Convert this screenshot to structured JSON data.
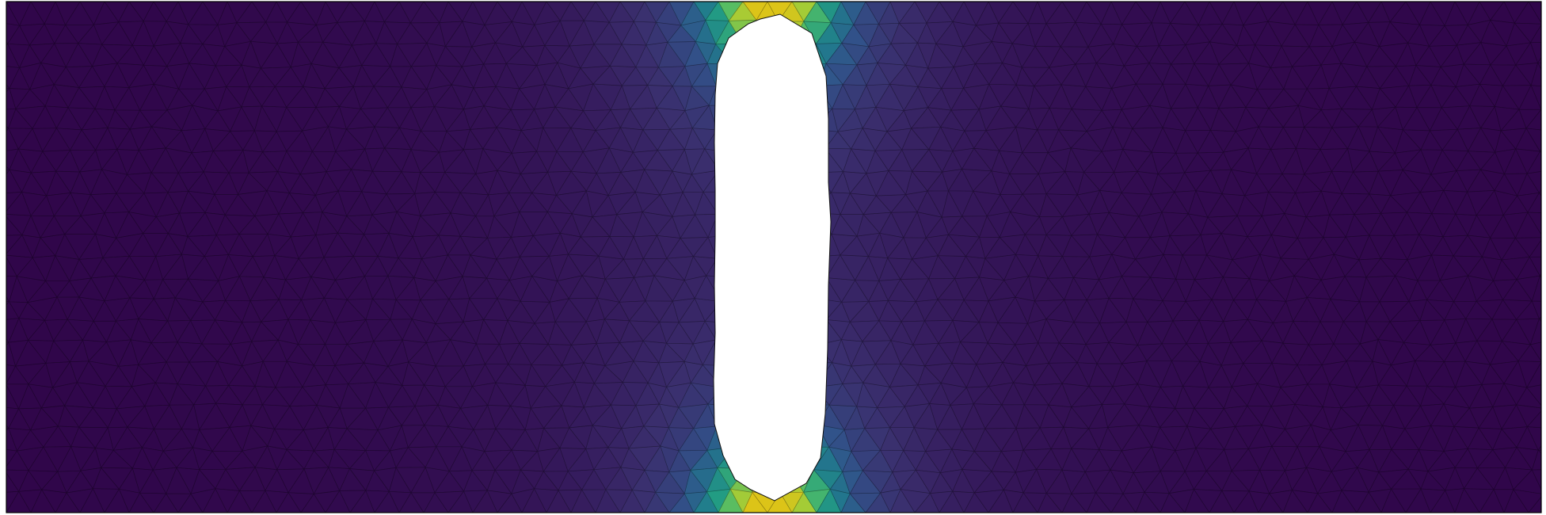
{
  "figure": {
    "kind": "finite-element-mesh-field",
    "element_type": "triangle",
    "colormap": "viridis",
    "colormap_stops": [
      "#30064a",
      "#3a2f6e",
      "#31538a",
      "#21798d",
      "#229c83",
      "#4fbb67",
      "#a5cc36",
      "#dcc418"
    ],
    "mesh_line_color": "#000000",
    "background_color": "#ffffff",
    "colorbar_shown": false,
    "axes_shown": false,
    "hole_shape": "slot",
    "field_peak_locations": [
      "top-edge-above-slot",
      "bottom-edge-below-slot"
    ]
  }
}
